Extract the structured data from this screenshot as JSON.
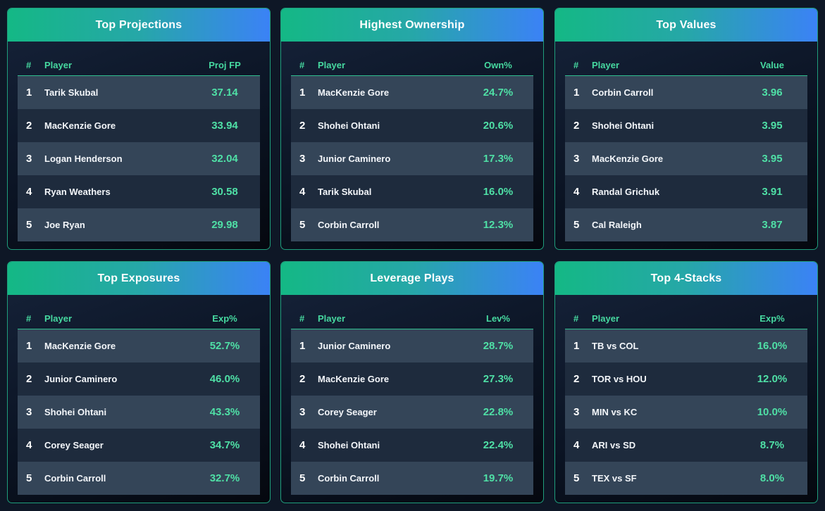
{
  "cards": [
    {
      "title": "Top Projections",
      "headers": {
        "rank": "#",
        "player": "Player",
        "value": "Proj FP"
      },
      "rows": [
        {
          "rank": "1",
          "player": "Tarik Skubal",
          "value": "37.14"
        },
        {
          "rank": "2",
          "player": "MacKenzie Gore",
          "value": "33.94"
        },
        {
          "rank": "3",
          "player": "Logan Henderson",
          "value": "32.04"
        },
        {
          "rank": "4",
          "player": "Ryan Weathers",
          "value": "30.58"
        },
        {
          "rank": "5",
          "player": "Joe Ryan",
          "value": "29.98"
        }
      ]
    },
    {
      "title": "Highest Ownership",
      "headers": {
        "rank": "#",
        "player": "Player",
        "value": "Own%"
      },
      "rows": [
        {
          "rank": "1",
          "player": "MacKenzie Gore",
          "value": "24.7%"
        },
        {
          "rank": "2",
          "player": "Shohei Ohtani",
          "value": "20.6%"
        },
        {
          "rank": "3",
          "player": "Junior Caminero",
          "value": "17.3%"
        },
        {
          "rank": "4",
          "player": "Tarik Skubal",
          "value": "16.0%"
        },
        {
          "rank": "5",
          "player": "Corbin Carroll",
          "value": "12.3%"
        }
      ]
    },
    {
      "title": "Top Values",
      "headers": {
        "rank": "#",
        "player": "Player",
        "value": "Value"
      },
      "rows": [
        {
          "rank": "1",
          "player": "Corbin Carroll",
          "value": "3.96"
        },
        {
          "rank": "2",
          "player": "Shohei Ohtani",
          "value": "3.95"
        },
        {
          "rank": "3",
          "player": "MacKenzie Gore",
          "value": "3.95"
        },
        {
          "rank": "4",
          "player": "Randal Grichuk",
          "value": "3.91"
        },
        {
          "rank": "5",
          "player": "Cal Raleigh",
          "value": "3.87"
        }
      ]
    },
    {
      "title": "Top Exposures",
      "headers": {
        "rank": "#",
        "player": "Player",
        "value": "Exp%"
      },
      "rows": [
        {
          "rank": "1",
          "player": "MacKenzie Gore",
          "value": "52.7%"
        },
        {
          "rank": "2",
          "player": "Junior Caminero",
          "value": "46.0%"
        },
        {
          "rank": "3",
          "player": "Shohei Ohtani",
          "value": "43.3%"
        },
        {
          "rank": "4",
          "player": "Corey Seager",
          "value": "34.7%"
        },
        {
          "rank": "5",
          "player": "Corbin Carroll",
          "value": "32.7%"
        }
      ]
    },
    {
      "title": "Leverage Plays",
      "headers": {
        "rank": "#",
        "player": "Player",
        "value": "Lev%"
      },
      "rows": [
        {
          "rank": "1",
          "player": "Junior Caminero",
          "value": "28.7%"
        },
        {
          "rank": "2",
          "player": "MacKenzie Gore",
          "value": "27.3%"
        },
        {
          "rank": "3",
          "player": "Corey Seager",
          "value": "22.8%"
        },
        {
          "rank": "4",
          "player": "Shohei Ohtani",
          "value": "22.4%"
        },
        {
          "rank": "5",
          "player": "Corbin Carroll",
          "value": "19.7%"
        }
      ]
    },
    {
      "title": "Top 4-Stacks",
      "headers": {
        "rank": "#",
        "player": "Player",
        "value": "Exp%"
      },
      "rows": [
        {
          "rank": "1",
          "player": "TB vs COL",
          "value": "16.0%"
        },
        {
          "rank": "2",
          "player": "TOR vs HOU",
          "value": "12.0%"
        },
        {
          "rank": "3",
          "player": "MIN vs KC",
          "value": "10.0%"
        },
        {
          "rank": "4",
          "player": "ARI vs SD",
          "value": "8.7%"
        },
        {
          "rank": "5",
          "player": "TEX vs SF",
          "value": "8.0%"
        }
      ]
    }
  ]
}
